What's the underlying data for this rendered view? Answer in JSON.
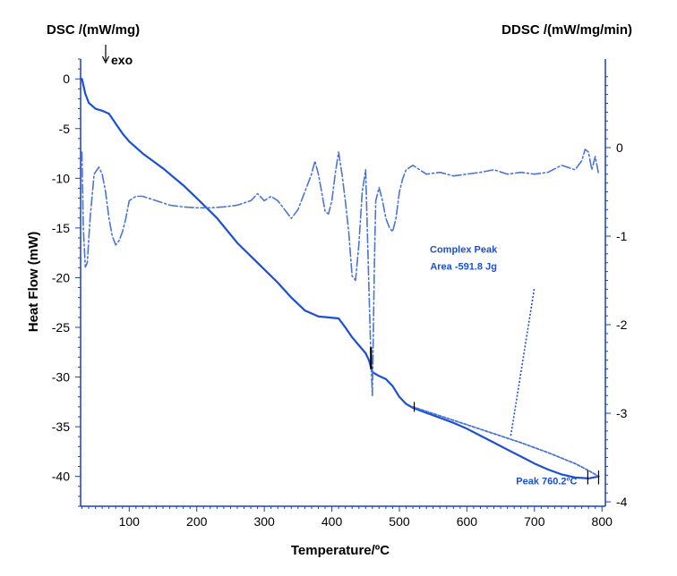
{
  "chart_data": {
    "type": "line",
    "title": "",
    "left_axis_header": "DSC /(mW/mg)",
    "right_axis_header": "DDSC /(mW/mg/min)",
    "exo_label": "exo",
    "xlabel": "Temperature/ºC",
    "ylabel": "Heat Flow (mW)",
    "xlim": [
      28,
      805
    ],
    "ylim_left": [
      -43,
      2
    ],
    "ylim_right": [
      -4.05,
      1.0
    ],
    "x_ticks": [
      100,
      200,
      300,
      400,
      500,
      600,
      700,
      800
    ],
    "y_left_ticks": [
      0,
      -5,
      -10,
      -15,
      -20,
      -25,
      -30,
      -35,
      -40
    ],
    "y_right_ticks": [
      0,
      -1,
      -2,
      -3,
      -4
    ],
    "grid": false,
    "colors": {
      "dsc": "#1a4fd6",
      "ddsc": "#4a74d8",
      "annotation": "#1a4fd6",
      "axis": "#1a3fc8"
    },
    "series": [
      {
        "axis": "left",
        "style": "solid",
        "x": [
          30,
          35,
          40,
          50,
          60,
          70,
          80,
          90,
          100,
          120,
          150,
          180,
          200,
          230,
          260,
          290,
          320,
          340,
          360,
          380,
          395,
          410,
          420,
          430,
          440,
          450,
          455,
          460,
          470,
          480,
          490,
          500,
          510,
          520,
          540,
          560,
          580,
          600,
          620,
          640,
          660,
          680,
          700,
          720,
          740,
          760,
          780,
          795
        ],
        "y": [
          0,
          -1.5,
          -2.4,
          -3.0,
          -3.2,
          -3.5,
          -4.5,
          -5.5,
          -6.3,
          -7.5,
          -9.0,
          -10.7,
          -12.0,
          -14.0,
          -16.5,
          -18.5,
          -20.5,
          -22.0,
          -23.3,
          -23.9,
          -24.0,
          -24.1,
          -25.0,
          -26.0,
          -26.8,
          -27.6,
          -28.3,
          -29.5,
          -29.9,
          -30.2,
          -30.9,
          -32.0,
          -32.7,
          -33.1,
          -33.6,
          -34.1,
          -34.6,
          -35.2,
          -35.9,
          -36.6,
          -37.3,
          -38.0,
          -38.7,
          -39.3,
          -39.8,
          -40.1,
          -40.2,
          -40.0
        ]
      },
      {
        "axis": "right",
        "style": "dashdot",
        "x": [
          30,
          32,
          35,
          38,
          42,
          48,
          55,
          60,
          65,
          70,
          75,
          80,
          85,
          90,
          95,
          100,
          110,
          120,
          140,
          160,
          180,
          200,
          220,
          240,
          260,
          280,
          290,
          300,
          310,
          320,
          330,
          340,
          350,
          360,
          370,
          375,
          380,
          385,
          390,
          395,
          400,
          405,
          410,
          415,
          420,
          425,
          430,
          435,
          440,
          445,
          450,
          455,
          458,
          460,
          463,
          465,
          470,
          475,
          480,
          485,
          490,
          495,
          500,
          505,
          510,
          520,
          540,
          560,
          580,
          600,
          620,
          640,
          660,
          680,
          700,
          720,
          740,
          760,
          770,
          775,
          780,
          785,
          790,
          795
        ],
        "y": [
          -0.05,
          -0.9,
          -1.35,
          -1.3,
          -0.8,
          -0.3,
          -0.22,
          -0.3,
          -0.5,
          -0.8,
          -1.0,
          -1.1,
          -1.05,
          -0.95,
          -0.8,
          -0.6,
          -0.55,
          -0.55,
          -0.6,
          -0.65,
          -0.67,
          -0.68,
          -0.68,
          -0.67,
          -0.65,
          -0.6,
          -0.52,
          -0.6,
          -0.55,
          -0.6,
          -0.7,
          -0.8,
          -0.7,
          -0.5,
          -0.3,
          -0.15,
          -0.3,
          -0.5,
          -0.72,
          -0.75,
          -0.6,
          -0.3,
          -0.05,
          -0.3,
          -0.6,
          -0.95,
          -1.45,
          -1.5,
          -1.1,
          -0.5,
          -0.25,
          -1.6,
          -2.4,
          -2.8,
          -1.3,
          -0.6,
          -0.45,
          -0.6,
          -0.8,
          -0.9,
          -0.95,
          -0.8,
          -0.5,
          -0.35,
          -0.25,
          -0.2,
          -0.3,
          -0.28,
          -0.32,
          -0.3,
          -0.28,
          -0.25,
          -0.3,
          -0.28,
          -0.3,
          -0.28,
          -0.2,
          -0.25,
          -0.15,
          -0.02,
          -0.05,
          -0.25,
          -0.1,
          -0.3
        ]
      },
      {
        "axis": "left",
        "style": "dashed",
        "x": [
          520,
          560,
          600,
          640,
          680,
          720,
          760,
          780,
          795
        ],
        "y": [
          -33.0,
          -33.9,
          -34.8,
          -35.7,
          -36.6,
          -37.6,
          -38.7,
          -39.4,
          -40.0
        ]
      }
    ],
    "annotations": [
      {
        "text": "Complex Peak",
        "x": 595,
        "y": -17.5
      },
      {
        "text": "Area -591.8 Jg",
        "x": 595,
        "y": -19.2
      },
      {
        "text": "Peak 760.2ºC",
        "x": 718,
        "y": -40.8
      }
    ],
    "markers": [
      {
        "x": 458,
        "y1": -27.0,
        "y2": -29.2
      },
      {
        "x": 522,
        "y1": -32.5,
        "y2": -33.5
      },
      {
        "x": 779,
        "y1": -39.4,
        "y2": -40.8
      },
      {
        "x": 795,
        "y1": -39.4,
        "y2": -40.8
      }
    ],
    "leader_line": {
      "x1": 665,
      "y1": -35.9,
      "x2": 700,
      "y2": -21.0
    }
  }
}
